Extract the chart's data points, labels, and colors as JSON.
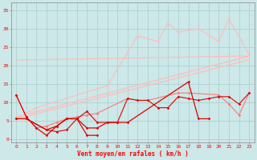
{
  "bg_color": "#cce8e8",
  "grid_color": "#aacccc",
  "col_light": "#ffbbbb",
  "col_mid": "#ff7777",
  "col_dark": "#dd0000",
  "xlabel": "Vent moyen/en rafales ( km/h )",
  "yticks": [
    0,
    5,
    10,
    15,
    20,
    25,
    30,
    35
  ],
  "xlim": [
    -0.5,
    23.5
  ],
  "ylim": [
    -1,
    37
  ],
  "trend1_x": [
    0,
    23
  ],
  "trend1_y": [
    5.5,
    21.5
  ],
  "trend2_x": [
    0,
    23
  ],
  "trend2_y": [
    6.0,
    22.5
  ],
  "flat_line_x": [
    0,
    1,
    22,
    23
  ],
  "flat_line_y": [
    21.5,
    21.5,
    22.5,
    22.5
  ],
  "scatter_x": [
    0,
    2,
    9,
    12,
    14,
    15,
    16,
    18,
    20,
    21,
    23
  ],
  "scatter_y": [
    5.5,
    8.5,
    14.5,
    28.0,
    26.5,
    31.5,
    29.0,
    30.0,
    26.5,
    32.5,
    23.0
  ],
  "line_mid_x": [
    0,
    1,
    2,
    3,
    4,
    5,
    6,
    7,
    8,
    11,
    12,
    13,
    16,
    17,
    20,
    21,
    22,
    23
  ],
  "line_mid_y": [
    12.0,
    6.0,
    3.0,
    3.5,
    4.5,
    5.5,
    6.0,
    6.5,
    7.0,
    11.0,
    10.5,
    10.5,
    12.5,
    12.5,
    12.0,
    9.5,
    6.5,
    12.5
  ],
  "line_dark1_x": [
    0,
    1,
    2,
    3,
    4,
    5,
    6,
    7,
    8
  ],
  "line_dark1_y": [
    12.0,
    6.0,
    3.0,
    1.0,
    3.5,
    5.5,
    5.5,
    1.0,
    1.0
  ],
  "line_dark2_x": [
    0,
    1,
    3,
    4,
    5,
    6,
    7,
    8,
    9,
    10,
    11,
    17,
    18,
    19
  ],
  "line_dark2_y": [
    5.5,
    5.5,
    2.5,
    3.5,
    5.5,
    5.5,
    3.0,
    3.0,
    4.5,
    4.5,
    4.5,
    15.5,
    5.5,
    5.5
  ],
  "line_dark3_x": [
    0,
    1,
    3,
    4,
    5,
    6,
    7,
    8,
    9,
    10,
    11,
    12,
    13,
    14,
    15,
    16,
    17,
    18,
    19,
    20,
    21,
    22,
    23
  ],
  "line_dark3_y": [
    5.5,
    5.5,
    2.5,
    2.0,
    2.5,
    5.5,
    7.5,
    4.5,
    4.5,
    4.5,
    11.0,
    10.5,
    10.5,
    8.5,
    8.5,
    11.5,
    11.0,
    10.5,
    11.0,
    11.5,
    11.5,
    9.5,
    12.5
  ]
}
